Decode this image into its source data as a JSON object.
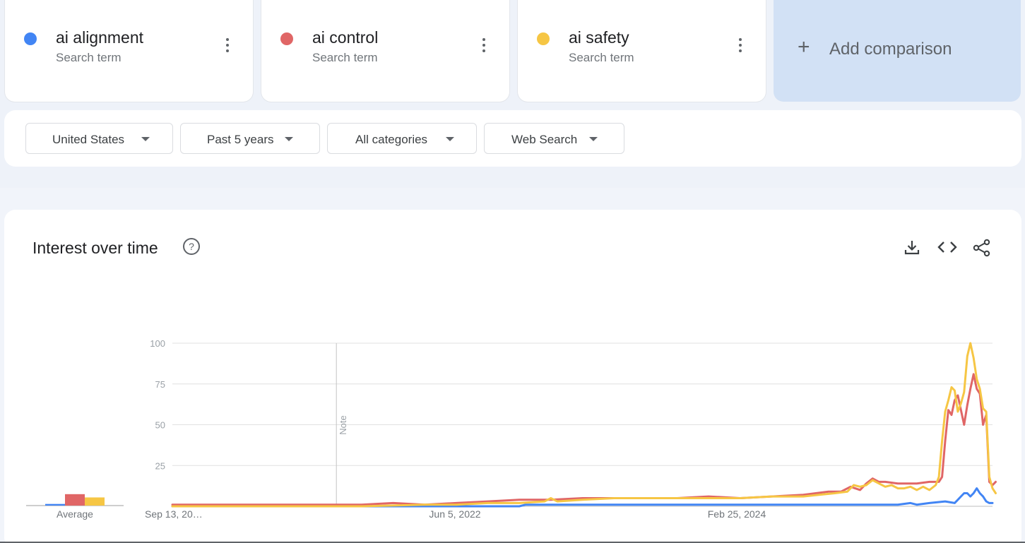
{
  "terms": [
    {
      "name": "ai alignment",
      "subtitle": "Search term",
      "color": "#4285f4"
    },
    {
      "name": "ai control",
      "subtitle": "Search term",
      "color": "#e06666"
    },
    {
      "name": "ai safety",
      "subtitle": "Search term",
      "color": "#f6c644"
    }
  ],
  "add_comparison": {
    "label": "Add comparison"
  },
  "filters": [
    {
      "label": "United States"
    },
    {
      "label": "Past 5 years"
    },
    {
      "label": "All categories"
    },
    {
      "label": "Web Search"
    }
  ],
  "panel": {
    "title": "Interest over time",
    "icons": [
      "help-icon",
      "download-icon",
      "embed-code-icon",
      "share-icon"
    ]
  },
  "chart_data": [
    {
      "type": "bar",
      "categories": [
        "Average"
      ],
      "series": [
        {
          "name": "ai alignment",
          "color": "#4285f4",
          "values": [
            1
          ]
        },
        {
          "name": "ai control",
          "color": "#e06666",
          "values": [
            7
          ]
        },
        {
          "name": "ai safety",
          "color": "#f6c644",
          "values": [
            5
          ]
        }
      ],
      "ylim": [
        0,
        100
      ]
    },
    {
      "type": "line",
      "x_ticks": [
        "Sep 13, 20…",
        "Jun 5, 2022",
        "Feb 25, 2024"
      ],
      "y_ticks": [
        25,
        50,
        75,
        100
      ],
      "ylim": [
        0,
        100
      ],
      "annotation": {
        "label": "Note",
        "week": 52
      },
      "weeks": 261,
      "series": [
        {
          "name": "ai alignment",
          "color": "#4285f4",
          "points": [
            [
              0,
              0
            ],
            [
              110,
              0
            ],
            [
              112,
              1
            ],
            [
              140,
              1
            ],
            [
              160,
              1
            ],
            [
              175,
              1
            ],
            [
              195,
              1
            ],
            [
              200,
              1
            ],
            [
              230,
              1
            ],
            [
              234,
              2
            ],
            [
              236,
              1
            ],
            [
              240,
              2
            ],
            [
              245,
              3
            ],
            [
              248,
              2
            ],
            [
              249,
              4
            ],
            [
              250,
              6
            ],
            [
              251,
              8
            ],
            [
              252,
              8
            ],
            [
              253,
              6
            ],
            [
              254,
              8
            ],
            [
              255,
              11
            ],
            [
              256,
              8
            ],
            [
              257,
              6
            ],
            [
              258,
              3
            ],
            [
              259,
              2
            ],
            [
              260,
              2
            ]
          ]
        },
        {
          "name": "ai control",
          "color": "#e06666",
          "points": [
            [
              0,
              1
            ],
            [
              60,
              1
            ],
            [
              70,
              2
            ],
            [
              80,
              1
            ],
            [
              90,
              2
            ],
            [
              100,
              3
            ],
            [
              110,
              4
            ],
            [
              120,
              4
            ],
            [
              130,
              5
            ],
            [
              140,
              5
            ],
            [
              150,
              5
            ],
            [
              160,
              5
            ],
            [
              170,
              6
            ],
            [
              180,
              5
            ],
            [
              190,
              6
            ],
            [
              200,
              7
            ],
            [
              208,
              9
            ],
            [
              212,
              9
            ],
            [
              215,
              12
            ],
            [
              218,
              10
            ],
            [
              220,
              14
            ],
            [
              222,
              17
            ],
            [
              224,
              15
            ],
            [
              226,
              15
            ],
            [
              230,
              14
            ],
            [
              236,
              14
            ],
            [
              240,
              15
            ],
            [
              243,
              15
            ],
            [
              244,
              18
            ],
            [
              245,
              40
            ],
            [
              246,
              59
            ],
            [
              247,
              56
            ],
            [
              248,
              65
            ],
            [
              249,
              68
            ],
            [
              250,
              59
            ],
            [
              251,
              50
            ],
            [
              252,
              62
            ],
            [
              253,
              72
            ],
            [
              254,
              81
            ],
            [
              255,
              72
            ],
            [
              256,
              69
            ],
            [
              257,
              50
            ],
            [
              258,
              56
            ],
            [
              259,
              15
            ],
            [
              260,
              13
            ],
            [
              261,
              15
            ]
          ]
        },
        {
          "name": "ai safety",
          "color": "#f6c644",
          "points": [
            [
              0,
              0
            ],
            [
              40,
              0
            ],
            [
              60,
              0
            ],
            [
              80,
              1
            ],
            [
              90,
              1
            ],
            [
              100,
              2
            ],
            [
              110,
              2
            ],
            [
              118,
              3
            ],
            [
              120,
              5
            ],
            [
              122,
              3
            ],
            [
              130,
              4
            ],
            [
              140,
              5
            ],
            [
              150,
              5
            ],
            [
              160,
              5
            ],
            [
              170,
              5
            ],
            [
              180,
              5
            ],
            [
              190,
              6
            ],
            [
              200,
              6
            ],
            [
              205,
              7
            ],
            [
              210,
              8
            ],
            [
              214,
              9
            ],
            [
              216,
              13
            ],
            [
              218,
              12
            ],
            [
              220,
              13
            ],
            [
              222,
              16
            ],
            [
              224,
              14
            ],
            [
              226,
              12
            ],
            [
              228,
              13
            ],
            [
              230,
              11
            ],
            [
              232,
              11
            ],
            [
              234,
              12
            ],
            [
              236,
              10
            ],
            [
              238,
              12
            ],
            [
              240,
              10
            ],
            [
              242,
              13
            ],
            [
              243,
              18
            ],
            [
              244,
              40
            ],
            [
              245,
              58
            ],
            [
              246,
              65
            ],
            [
              247,
              73
            ],
            [
              248,
              71
            ],
            [
              249,
              58
            ],
            [
              250,
              63
            ],
            [
              251,
              70
            ],
            [
              252,
              92
            ],
            [
              253,
              100
            ],
            [
              254,
              91
            ],
            [
              255,
              78
            ],
            [
              256,
              72
            ],
            [
              257,
              60
            ],
            [
              258,
              58
            ],
            [
              259,
              18
            ],
            [
              260,
              11
            ],
            [
              261,
              8
            ]
          ]
        }
      ]
    }
  ]
}
